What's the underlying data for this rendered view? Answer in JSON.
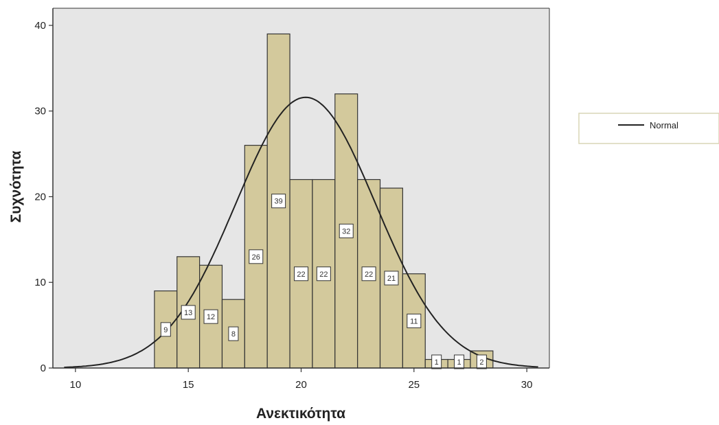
{
  "chart_data": {
    "type": "bar",
    "subtype": "histogram",
    "xlabel": "Ανεκτικότητα",
    "ylabel": "Συχνότητα",
    "xlim": [
      9,
      31
    ],
    "ylim": [
      0,
      42
    ],
    "x_ticks": [
      10,
      15,
      20,
      25,
      30
    ],
    "y_ticks": [
      0,
      10,
      20,
      30,
      40
    ],
    "bin_width": 1,
    "bins": [
      {
        "x": 14,
        "value": 9
      },
      {
        "x": 15,
        "value": 13
      },
      {
        "x": 16,
        "value": 12
      },
      {
        "x": 17,
        "value": 8
      },
      {
        "x": 18,
        "value": 26
      },
      {
        "x": 19,
        "value": 39
      },
      {
        "x": 20,
        "value": 22
      },
      {
        "x": 21,
        "value": 22
      },
      {
        "x": 22,
        "value": 32
      },
      {
        "x": 23,
        "value": 22
      },
      {
        "x": 24,
        "value": 21
      },
      {
        "x": 25,
        "value": 11
      },
      {
        "x": 26,
        "value": 1
      },
      {
        "x": 27,
        "value": 1
      },
      {
        "x": 28,
        "value": 2
      }
    ],
    "normal_curve": {
      "mean": 20.2,
      "peak": 31.6,
      "sd": 3.1
    },
    "legend": {
      "label": "Normal",
      "placement": "right"
    },
    "colors": {
      "bar_fill": "#d3c99c",
      "bar_stroke": "#333333",
      "plot_bg": "#e6e6e6",
      "curve": "#222222"
    },
    "grid": false
  }
}
